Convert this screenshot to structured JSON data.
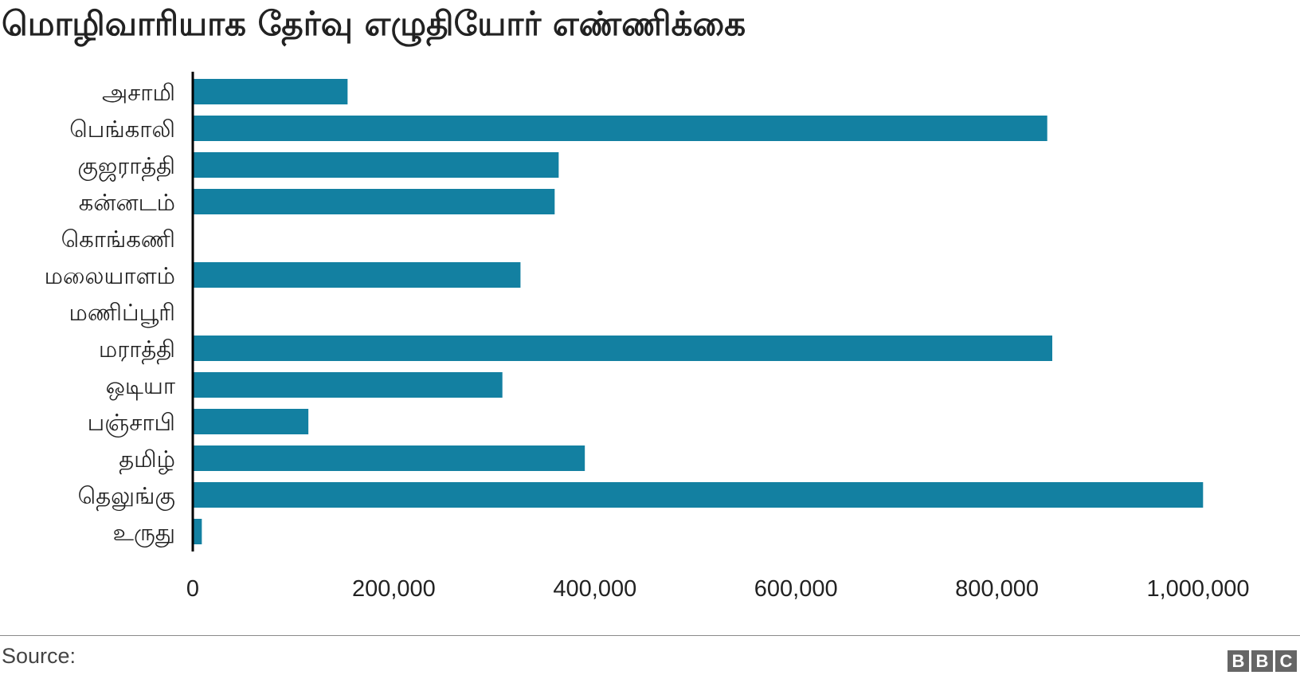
{
  "title": "மொழிவாரியாக தேர்வு எழுதியோர் எண்ணிக்கை",
  "source_label": "Source:",
  "logo": {
    "text": "BBC",
    "letters": [
      "B",
      "B",
      "C"
    ]
  },
  "colors": {
    "bar": "#1380A1",
    "axis": "#000000",
    "text": "#222222"
  },
  "chart_data": {
    "type": "bar",
    "orientation": "horizontal",
    "title": "மொழிவாரியாக தேர்வு எழுதியோர் எண்ணிக்கை",
    "xlabel": "",
    "ylabel": "",
    "categories": [
      "அசாமி",
      "பெங்காலி",
      "குஜராத்தி",
      "கன்னடம்",
      "கொங்கணி",
      "மலையாளம்",
      "மணிப்பூரி",
      "மராத்தி",
      "ஒடியா",
      "பஞ்சாபி",
      "தமிழ்",
      "தெலுங்கு",
      "உருது"
    ],
    "values": [
      154000,
      850000,
      364000,
      360000,
      0,
      326000,
      0,
      855000,
      308000,
      115000,
      390000,
      1005000,
      9000
    ],
    "xlim": [
      0,
      1050000
    ],
    "xticks": [
      0,
      200000,
      400000,
      600000,
      800000,
      1000000
    ],
    "xtick_labels": [
      "0",
      "200,000",
      "400,000",
      "600,000",
      "800,000",
      "1,000,000"
    ],
    "grid": false,
    "legend": "none"
  }
}
